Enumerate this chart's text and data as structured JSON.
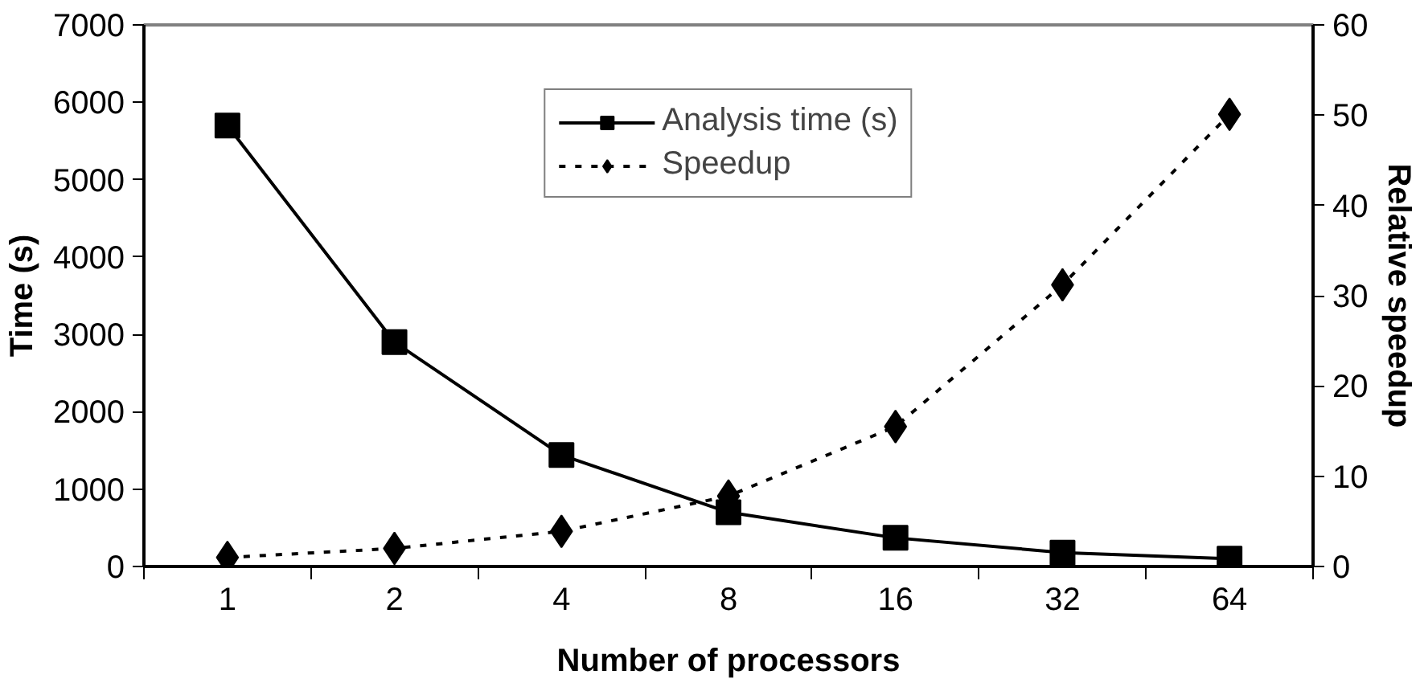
{
  "chart_data": {
    "type": "line",
    "xlabel": "Number of processors",
    "ylabel": "Time (s)",
    "y2label": "Relative speedup",
    "categories": [
      "1",
      "2",
      "4",
      "8",
      "16",
      "32",
      "64"
    ],
    "series": [
      {
        "name": "Analysis time (s)",
        "color": "#000000",
        "values": [
          5700,
          2900,
          1440,
          700,
          370,
          180,
          100
        ],
        "marker": "square",
        "line_style": "solid"
      },
      {
        "name": "Speedup",
        "color": "#000000",
        "values": [
          1.0,
          2.0,
          3.9,
          7.8,
          15.5,
          31.2,
          50.1
        ],
        "marker": "diamond",
        "line_style": "dashed",
        "axis": "y2"
      }
    ],
    "ylim": [
      0,
      7000
    ],
    "yticks": [
      0,
      1000,
      2000,
      3000,
      4000,
      5000,
      6000,
      7000
    ],
    "y2lim": [
      0,
      60
    ],
    "y2ticks": [
      0,
      10,
      20,
      30,
      40,
      50,
      60
    ],
    "grid": false,
    "legend": "top"
  }
}
